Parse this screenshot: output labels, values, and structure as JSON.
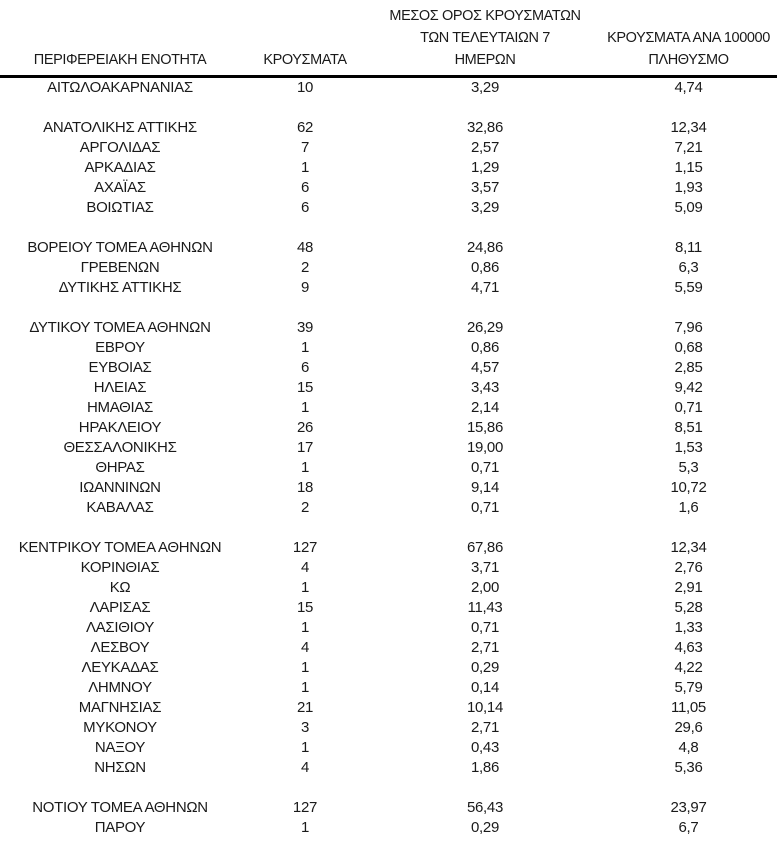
{
  "colors": {
    "background": "#ffffff",
    "text": "#1a1a1a",
    "header_rule": "#000000"
  },
  "header_layout": {
    "region": "ΠΕΡΙΦΕΡΕΙΑΚΗ ΕΝΟΤΗΤΑ",
    "cases": "ΚΡΟΥΣΜΑΤΑ",
    "avg7_lines": [
      "ΜΕΣΟΣ ΟΡΟΣ ΚΡΟΥΣΜΑΤΩΝ",
      "ΤΩΝ ΤΕΛΕΥΤΑΙΩΝ 7",
      "ΗΜΕΡΩΝ"
    ],
    "per100k_lines": [
      "ΚΡΟΥΣΜΑΤΑ ΑΝΑ 100000",
      "ΠΛΗΘΥΣΜΟ"
    ]
  },
  "chart_data": {
    "type": "table",
    "columns": [
      "ΠΕΡΙΦΕΡΕΙΑΚΗ ΕΝΟΤΗΤΑ",
      "ΚΡΟΥΣΜΑΤΑ",
      "ΜΕΣΟΣ ΟΡΟΣ ΚΡΟΥΣΜΑΤΩΝ ΤΩΝ ΤΕΛΕΥΤΑΙΩΝ 7 ΗΜΕΡΩΝ",
      "ΚΡΟΥΣΜΑΤΑ ΑΝΑ 100000 ΠΛΗΘΥΣΜΟ"
    ],
    "rows": [
      {
        "region": "ΑΙΤΩΛΟΑΚΑΡΝΑΝΙΑΣ",
        "cases": "10",
        "avg7": "3,29",
        "per100k": "4,74",
        "gap_before": false
      },
      {
        "region": "ΑΝΑΤΟΛΙΚΗΣ ΑΤΤΙΚΗΣ",
        "cases": "62",
        "avg7": "32,86",
        "per100k": "12,34",
        "gap_before": true
      },
      {
        "region": "ΑΡΓΟΛΙΔΑΣ",
        "cases": "7",
        "avg7": "2,57",
        "per100k": "7,21",
        "gap_before": false
      },
      {
        "region": "ΑΡΚΑΔΙΑΣ",
        "cases": "1",
        "avg7": "1,29",
        "per100k": "1,15",
        "gap_before": false
      },
      {
        "region": "ΑΧΑΪΑΣ",
        "cases": "6",
        "avg7": "3,57",
        "per100k": "1,93",
        "gap_before": false
      },
      {
        "region": "ΒΟΙΩΤΙΑΣ",
        "cases": "6",
        "avg7": "3,29",
        "per100k": "5,09",
        "gap_before": false
      },
      {
        "region": "ΒΟΡΕΙΟΥ ΤΟΜΕΑ ΑΘΗΝΩΝ",
        "cases": "48",
        "avg7": "24,86",
        "per100k": "8,11",
        "gap_before": true
      },
      {
        "region": "ΓΡΕΒΕΝΩΝ",
        "cases": "2",
        "avg7": "0,86",
        "per100k": "6,3",
        "gap_before": false
      },
      {
        "region": "ΔΥΤΙΚΗΣ ΑΤΤΙΚΗΣ",
        "cases": "9",
        "avg7": "4,71",
        "per100k": "5,59",
        "gap_before": false
      },
      {
        "region": "ΔΥΤΙΚΟΥ ΤΟΜΕΑ ΑΘΗΝΩΝ",
        "cases": "39",
        "avg7": "26,29",
        "per100k": "7,96",
        "gap_before": true
      },
      {
        "region": "ΕΒΡΟΥ",
        "cases": "1",
        "avg7": "0,86",
        "per100k": "0,68",
        "gap_before": false
      },
      {
        "region": "ΕΥΒΟΙΑΣ",
        "cases": "6",
        "avg7": "4,57",
        "per100k": "2,85",
        "gap_before": false
      },
      {
        "region": "ΗΛΕΙΑΣ",
        "cases": "15",
        "avg7": "3,43",
        "per100k": "9,42",
        "gap_before": false
      },
      {
        "region": "ΗΜΑΘΙΑΣ",
        "cases": "1",
        "avg7": "2,14",
        "per100k": "0,71",
        "gap_before": false
      },
      {
        "region": "ΗΡΑΚΛΕΙΟΥ",
        "cases": "26",
        "avg7": "15,86",
        "per100k": "8,51",
        "gap_before": false
      },
      {
        "region": "ΘΕΣΣΑΛΟΝΙΚΗΣ",
        "cases": "17",
        "avg7": "19,00",
        "per100k": "1,53",
        "gap_before": false
      },
      {
        "region": "ΘΗΡΑΣ",
        "cases": "1",
        "avg7": "0,71",
        "per100k": "5,3",
        "gap_before": false
      },
      {
        "region": "ΙΩΑΝΝΙΝΩΝ",
        "cases": "18",
        "avg7": "9,14",
        "per100k": "10,72",
        "gap_before": false
      },
      {
        "region": "ΚΑΒΑΛΑΣ",
        "cases": "2",
        "avg7": "0,71",
        "per100k": "1,6",
        "gap_before": false
      },
      {
        "region": "ΚΕΝΤΡΙΚΟΥ ΤΟΜΕΑ ΑΘΗΝΩΝ",
        "cases": "127",
        "avg7": "67,86",
        "per100k": "12,34",
        "gap_before": true
      },
      {
        "region": "ΚΟΡΙΝΘΙΑΣ",
        "cases": "4",
        "avg7": "3,71",
        "per100k": "2,76",
        "gap_before": false
      },
      {
        "region": "ΚΩ",
        "cases": "1",
        "avg7": "2,00",
        "per100k": "2,91",
        "gap_before": false
      },
      {
        "region": "ΛΑΡΙΣΑΣ",
        "cases": "15",
        "avg7": "11,43",
        "per100k": "5,28",
        "gap_before": false
      },
      {
        "region": "ΛΑΣΙΘΙΟΥ",
        "cases": "1",
        "avg7": "0,71",
        "per100k": "1,33",
        "gap_before": false
      },
      {
        "region": "ΛΕΣΒΟΥ",
        "cases": "4",
        "avg7": "2,71",
        "per100k": "4,63",
        "gap_before": false
      },
      {
        "region": "ΛΕΥΚΑΔΑΣ",
        "cases": "1",
        "avg7": "0,29",
        "per100k": "4,22",
        "gap_before": false
      },
      {
        "region": "ΛΗΜΝΟΥ",
        "cases": "1",
        "avg7": "0,14",
        "per100k": "5,79",
        "gap_before": false
      },
      {
        "region": "ΜΑΓΝΗΣΙΑΣ",
        "cases": "21",
        "avg7": "10,14",
        "per100k": "11,05",
        "gap_before": false
      },
      {
        "region": "ΜΥΚΟΝΟΥ",
        "cases": "3",
        "avg7": "2,71",
        "per100k": "29,6",
        "gap_before": false
      },
      {
        "region": "ΝΑΞΟΥ",
        "cases": "1",
        "avg7": "0,43",
        "per100k": "4,8",
        "gap_before": false
      },
      {
        "region": "ΝΗΣΩΝ",
        "cases": "4",
        "avg7": "1,86",
        "per100k": "5,36",
        "gap_before": false
      },
      {
        "region": "ΝΟΤΙΟΥ ΤΟΜΕΑ ΑΘΗΝΩΝ",
        "cases": "127",
        "avg7": "56,43",
        "per100k": "23,97",
        "gap_before": true
      },
      {
        "region": "ΠΑΡΟΥ",
        "cases": "1",
        "avg7": "0,29",
        "per100k": "6,7",
        "gap_before": false
      }
    ]
  }
}
